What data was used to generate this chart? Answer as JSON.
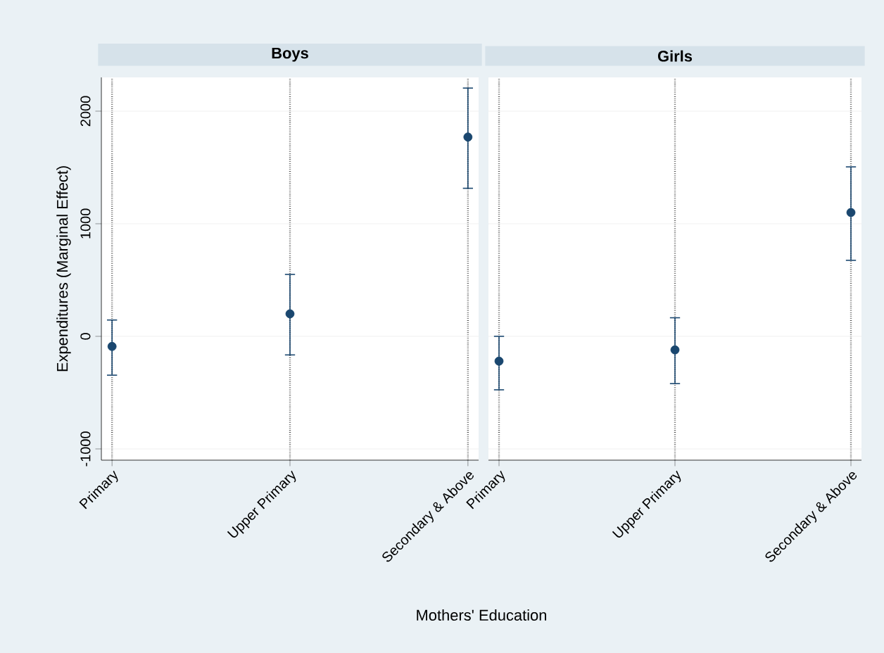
{
  "chart_data": [
    {
      "type": "scatter",
      "title": "Boys",
      "ylabel": "Expenditures (Marginal Effect)",
      "xlabel": "Mothers' Education",
      "categories": [
        "Primary",
        "Upper Primary",
        "Secondary & Above"
      ],
      "values": [
        -90,
        200,
        1770
      ],
      "errors": [
        [
          -350,
          150
        ],
        [
          -170,
          555
        ],
        [
          1310,
          2210
        ]
      ],
      "color": "#1a476f",
      "marker": "circle",
      "grid": true,
      "ylim": [
        -1100,
        2300
      ],
      "yticks": [
        -1000,
        0,
        1000,
        2000
      ]
    },
    {
      "type": "scatter",
      "title": "Girls",
      "categories": [
        "Primary",
        "Upper Primary",
        "Secondary & Above"
      ],
      "values": [
        -220,
        -120,
        1100
      ],
      "errors": [
        [
          -480,
          5
        ],
        [
          -425,
          170
        ],
        [
          670,
          1510
        ]
      ],
      "color": "#1a476f",
      "marker": "circle",
      "grid": true,
      "ylim": [
        -1100,
        2300
      ],
      "yticks": [
        -1000,
        0,
        1000,
        2000
      ],
      "tick_labels": "x"
    }
  ]
}
